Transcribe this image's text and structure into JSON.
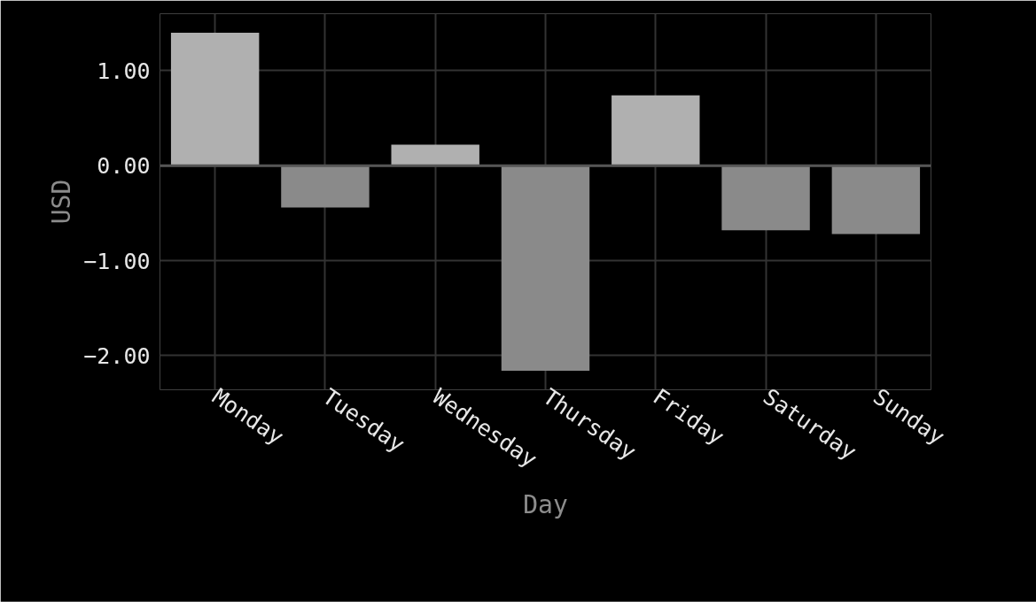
{
  "chart_data": {
    "type": "bar",
    "xlabel": "Day",
    "ylabel": "USD",
    "categories": [
      "Monday",
      "Tuesday",
      "Wednesday",
      "Thursday",
      "Friday",
      "Saturday",
      "Sunday"
    ],
    "values": [
      1.4,
      -0.44,
      0.22,
      -2.16,
      0.74,
      -0.68,
      -0.72
    ],
    "colors": [
      "#b0b0b0",
      "#8a8a8a",
      "#b0b0b0",
      "#8a8a8a",
      "#b0b0b0",
      "#8a8a8a",
      "#8a8a8a"
    ],
    "ylim": [
      -2.36,
      1.6
    ],
    "yticks": [
      {
        "value": -2,
        "label": "−2.00"
      },
      {
        "value": -1,
        "label": "−1.00"
      },
      {
        "value": 0,
        "label": "0.00"
      },
      {
        "value": 1,
        "label": "1.00"
      }
    ],
    "ref_lines": [
      {
        "axis": "y",
        "value": 0,
        "color": "#555555"
      }
    ],
    "grid": true
  }
}
